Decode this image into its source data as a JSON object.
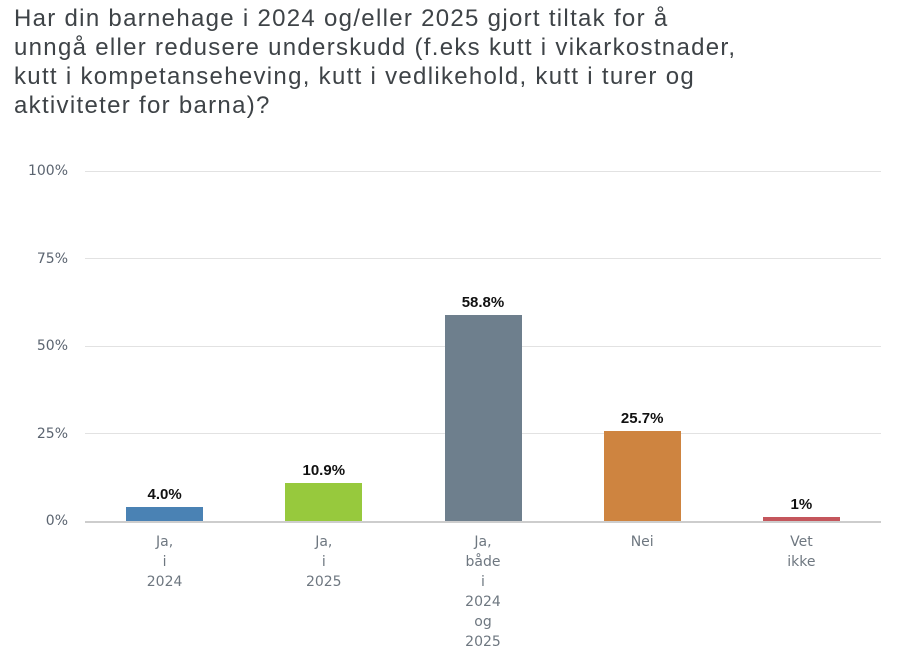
{
  "title": "Har din barnehage i 2024 og/eller 2025 gjort tiltak for å unngå eller redusere underskudd (f.eks kutt i vikarkostnader, kutt i kompetanseheving, kutt i vedlikehold, kutt i turer og aktiviteter for barna)?",
  "title_lines": [
    "Har din barnehage i 2024 og/eller 2025 gjort tiltak for å",
    "unngå eller redusere underskudd (f.eks kutt i vikarkostnader,",
    "kutt i kompetanseheving, kutt i vedlikehold, kutt i turer og",
    "aktiviteter for barna)?"
  ],
  "chart_data": {
    "type": "bar",
    "title": "",
    "xlabel": "",
    "ylabel": "",
    "categories": [
      "Ja, i 2024",
      "Ja, i 2025",
      "Ja, både i 2024 og 2025",
      "Nei",
      "Vet ikke"
    ],
    "category_label_lines": [
      [
        "Ja,",
        "i",
        "2024"
      ],
      [
        "Ja,",
        "i",
        "2025"
      ],
      [
        "Ja,",
        "både",
        "i",
        "2024",
        "og",
        "2025"
      ],
      [
        "Nei"
      ],
      [
        "Vet",
        "ikke"
      ]
    ],
    "values": [
      4.0,
      10.9,
      58.8,
      25.7,
      1
    ],
    "value_labels": [
      "4.0%",
      "10.9%",
      "58.8%",
      "25.7%",
      "1%"
    ],
    "bar_colors": [
      "#4a82b4",
      "#97c93d",
      "#6e7f8d",
      "#ce8440",
      "#c4565c"
    ],
    "ylim": [
      0,
      100
    ],
    "yticks": [
      0,
      25,
      50,
      75,
      100
    ],
    "ytick_labels": [
      "0%",
      "25%",
      "50%",
      "75%",
      "100%"
    ],
    "grid": true,
    "legend": false,
    "style": {
      "gridline_color": "#e2e2e2",
      "axisline_color": "#cdcdcd",
      "ytick_text_color": "#5b6470",
      "xtick_text_color": "#6e7780",
      "value_label_color": "#111111",
      "title_text_color": "#3e4347",
      "background_color": "#ffffff"
    }
  }
}
